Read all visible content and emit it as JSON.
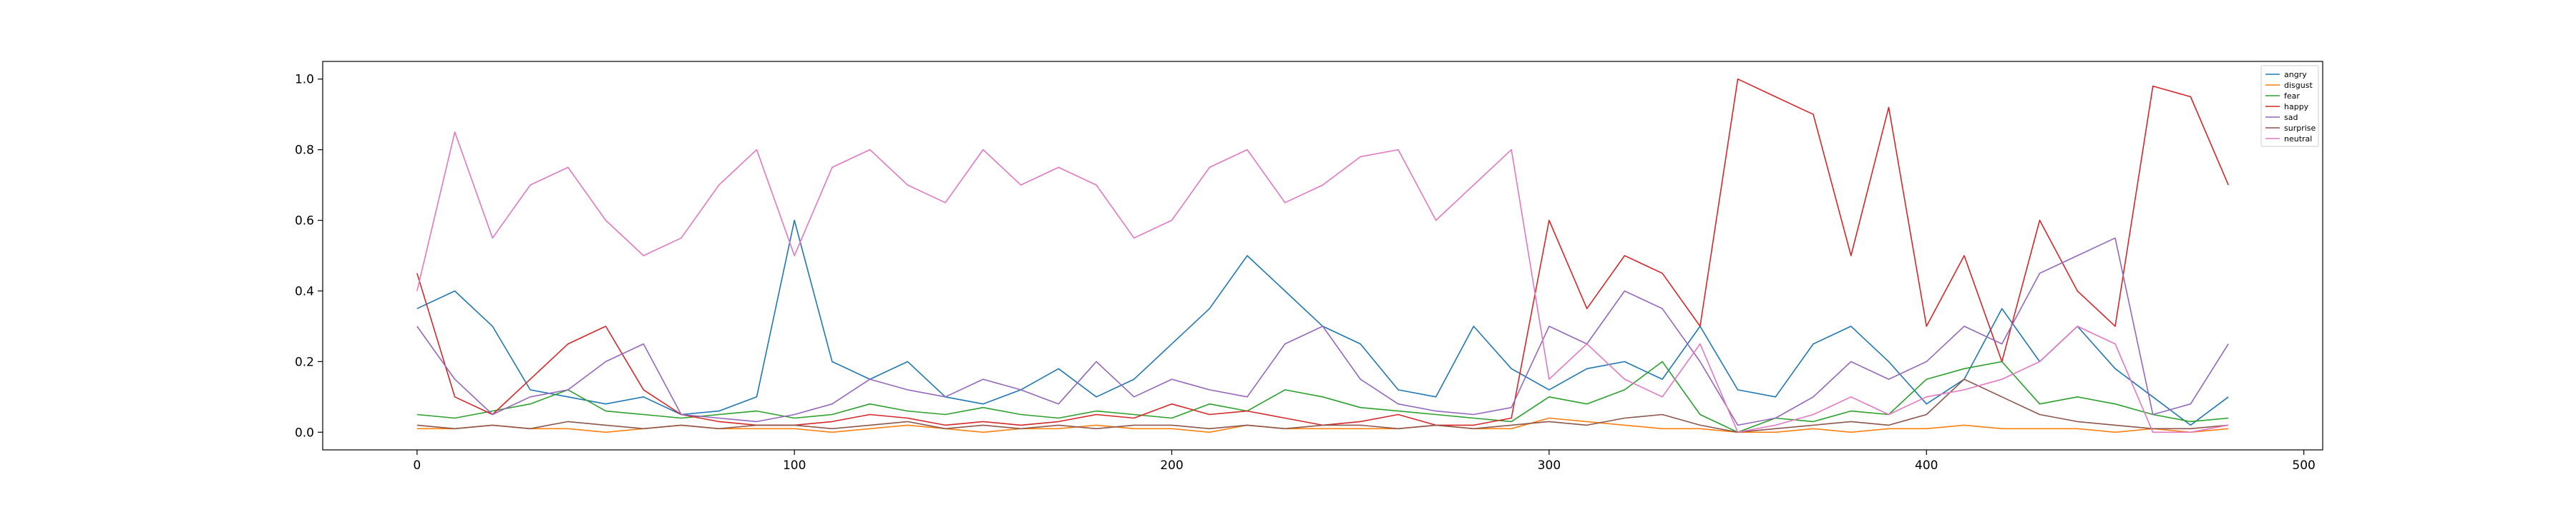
{
  "chart_data": {
    "type": "line",
    "title": "",
    "xlabel": "",
    "ylabel": "",
    "xlim": [
      -25,
      505
    ],
    "ylim": [
      -0.05,
      1.05
    ],
    "grid": false,
    "legend_position": "top-right",
    "x_ticks": [
      0,
      100,
      200,
      300,
      400,
      500
    ],
    "x_tick_labels": [
      "0",
      "100",
      "200",
      "300",
      "400",
      "500"
    ],
    "y_ticks": [
      0.0,
      0.2,
      0.4,
      0.6,
      0.8,
      1.0
    ],
    "y_tick_labels": [
      "0.0",
      "0.2",
      "0.4",
      "0.6",
      "0.8",
      "1.0"
    ],
    "x_start": 0,
    "x_step": 10,
    "series": [
      {
        "name": "angry",
        "color": "#1f77b4",
        "values": [
          0.35,
          0.4,
          0.3,
          0.12,
          0.1,
          0.08,
          0.1,
          0.05,
          0.06,
          0.1,
          0.6,
          0.2,
          0.15,
          0.2,
          0.1,
          0.08,
          0.12,
          0.18,
          0.1,
          0.15,
          0.25,
          0.35,
          0.5,
          0.4,
          0.3,
          0.25,
          0.12,
          0.1,
          0.3,
          0.18,
          0.12,
          0.18,
          0.2,
          0.15,
          0.3,
          0.12,
          0.1,
          0.25,
          0.3,
          0.2,
          0.08,
          0.15,
          0.35,
          0.2,
          0.3,
          0.18,
          0.1,
          0.02,
          0.1
        ]
      },
      {
        "name": "disgust",
        "color": "#ff7f0e",
        "values": [
          0.01,
          0.01,
          0.02,
          0.01,
          0.01,
          0.0,
          0.01,
          0.02,
          0.01,
          0.01,
          0.01,
          0.0,
          0.01,
          0.02,
          0.01,
          0.0,
          0.01,
          0.01,
          0.02,
          0.01,
          0.01,
          0.0,
          0.02,
          0.01,
          0.01,
          0.01,
          0.01,
          0.02,
          0.01,
          0.01,
          0.04,
          0.03,
          0.02,
          0.01,
          0.01,
          0.0,
          0.0,
          0.01,
          0.0,
          0.01,
          0.01,
          0.02,
          0.01,
          0.01,
          0.01,
          0.0,
          0.01,
          0.0,
          0.01
        ]
      },
      {
        "name": "fear",
        "color": "#2ca02c",
        "values": [
          0.05,
          0.04,
          0.06,
          0.08,
          0.12,
          0.06,
          0.05,
          0.04,
          0.05,
          0.06,
          0.04,
          0.05,
          0.08,
          0.06,
          0.05,
          0.07,
          0.05,
          0.04,
          0.06,
          0.05,
          0.04,
          0.08,
          0.06,
          0.12,
          0.1,
          0.07,
          0.06,
          0.05,
          0.04,
          0.03,
          0.1,
          0.08,
          0.12,
          0.2,
          0.05,
          0.0,
          0.04,
          0.03,
          0.06,
          0.05,
          0.15,
          0.18,
          0.2,
          0.08,
          0.1,
          0.08,
          0.05,
          0.03,
          0.04
        ]
      },
      {
        "name": "happy",
        "color": "#d62728",
        "values": [
          0.45,
          0.1,
          0.05,
          0.15,
          0.25,
          0.3,
          0.12,
          0.05,
          0.03,
          0.02,
          0.02,
          0.03,
          0.05,
          0.04,
          0.02,
          0.03,
          0.02,
          0.03,
          0.05,
          0.04,
          0.08,
          0.05,
          0.06,
          0.04,
          0.02,
          0.03,
          0.05,
          0.02,
          0.02,
          0.04,
          0.6,
          0.35,
          0.5,
          0.45,
          0.3,
          1.0,
          0.95,
          0.9,
          0.5,
          0.92,
          0.3,
          0.5,
          0.2,
          0.6,
          0.4,
          0.3,
          0.98,
          0.95,
          0.7
        ]
      },
      {
        "name": "sad",
        "color": "#9467bd",
        "values": [
          0.3,
          0.15,
          0.05,
          0.1,
          0.12,
          0.2,
          0.25,
          0.05,
          0.04,
          0.03,
          0.05,
          0.08,
          0.15,
          0.12,
          0.1,
          0.15,
          0.12,
          0.08,
          0.2,
          0.1,
          0.15,
          0.12,
          0.1,
          0.25,
          0.3,
          0.15,
          0.08,
          0.06,
          0.05,
          0.07,
          0.3,
          0.25,
          0.4,
          0.35,
          0.2,
          0.02,
          0.04,
          0.1,
          0.2,
          0.15,
          0.2,
          0.3,
          0.25,
          0.45,
          0.5,
          0.55,
          0.05,
          0.08,
          0.25
        ]
      },
      {
        "name": "surprise",
        "color": "#8c564b",
        "values": [
          0.02,
          0.01,
          0.02,
          0.01,
          0.03,
          0.02,
          0.01,
          0.02,
          0.01,
          0.02,
          0.02,
          0.01,
          0.02,
          0.03,
          0.01,
          0.02,
          0.01,
          0.02,
          0.01,
          0.02,
          0.02,
          0.01,
          0.02,
          0.01,
          0.02,
          0.02,
          0.01,
          0.02,
          0.01,
          0.02,
          0.03,
          0.02,
          0.04,
          0.05,
          0.02,
          0.0,
          0.01,
          0.02,
          0.03,
          0.02,
          0.05,
          0.15,
          0.1,
          0.05,
          0.03,
          0.02,
          0.01,
          0.01,
          0.02
        ]
      },
      {
        "name": "neutral",
        "color": "#e377c2",
        "values": [
          0.4,
          0.85,
          0.55,
          0.7,
          0.75,
          0.6,
          0.5,
          0.55,
          0.7,
          0.8,
          0.5,
          0.75,
          0.8,
          0.7,
          0.65,
          0.8,
          0.7,
          0.75,
          0.7,
          0.55,
          0.6,
          0.75,
          0.8,
          0.65,
          0.7,
          0.78,
          0.8,
          0.6,
          0.7,
          0.8,
          0.15,
          0.25,
          0.15,
          0.1,
          0.25,
          0.0,
          0.02,
          0.05,
          0.1,
          0.05,
          0.1,
          0.12,
          0.15,
          0.2,
          0.3,
          0.25,
          0.0,
          0.0,
          0.02
        ]
      }
    ]
  }
}
